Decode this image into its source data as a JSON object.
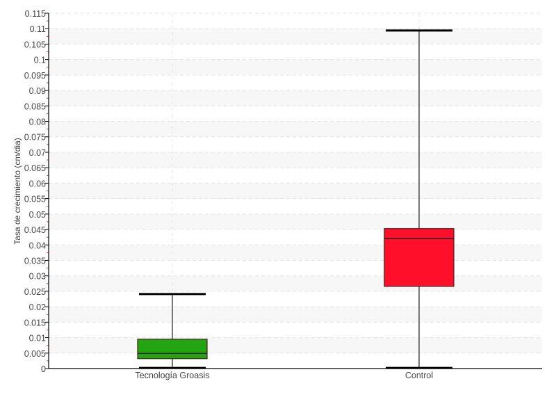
{
  "chart_data": {
    "type": "boxplot",
    "title": "",
    "xlabel": "",
    "ylabel": "Tasa de crecimiento (cm/dia)",
    "ylim": [
      0,
      0.115
    ],
    "ytick_step": 0.005,
    "grid": true,
    "categories": [
      "Tecnología Groasis",
      "Control"
    ],
    "series": [
      {
        "category": "Tecnología Groasis",
        "color": "#22a511",
        "min": 0.0002,
        "q1": 0.0032,
        "median": 0.0049,
        "q3": 0.0095,
        "max": 0.0241
      },
      {
        "category": "Control",
        "color": "#ff0f2a",
        "min": 0.0002,
        "q1": 0.0266,
        "median": 0.0421,
        "q3": 0.0453,
        "max": 0.1094
      }
    ]
  }
}
